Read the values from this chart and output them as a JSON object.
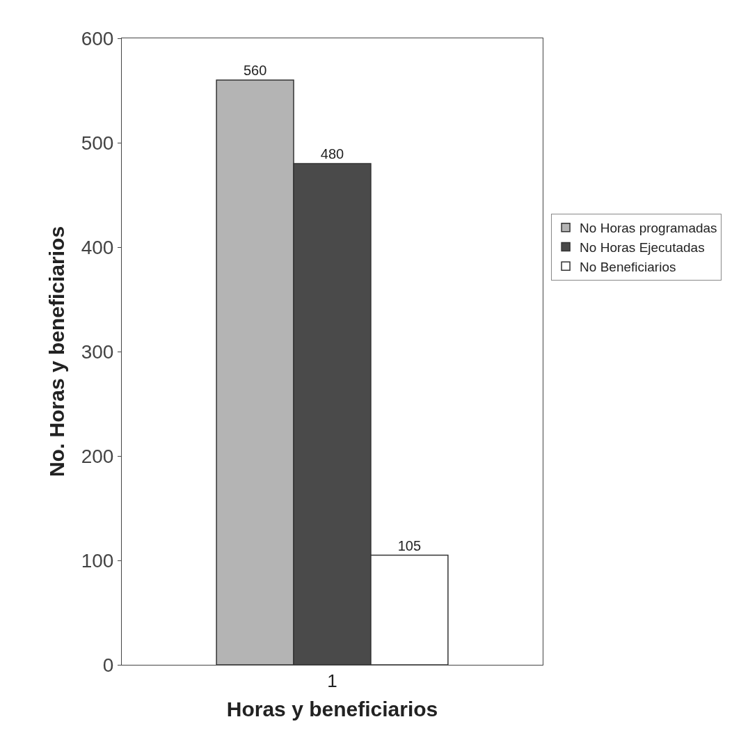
{
  "chart_data": {
    "type": "bar",
    "xlabel": "Horas y beneficiarios",
    "ylabel": "No. Horas y beneficiarios",
    "categories": [
      "1"
    ],
    "series": [
      {
        "name": "No Horas programadas",
        "color": "#b4b4b4",
        "values": [
          560
        ]
      },
      {
        "name": "No Horas Ejecutadas",
        "color": "#4a4a4a",
        "values": [
          480
        ]
      },
      {
        "name": "No Beneficiarios",
        "color": "#ffffff",
        "values": [
          105
        ]
      }
    ],
    "ylim": [
      0,
      600
    ],
    "yticks": [
      0,
      100,
      200,
      300,
      400,
      500,
      600
    ],
    "data_labels": true,
    "legend": "right"
  }
}
